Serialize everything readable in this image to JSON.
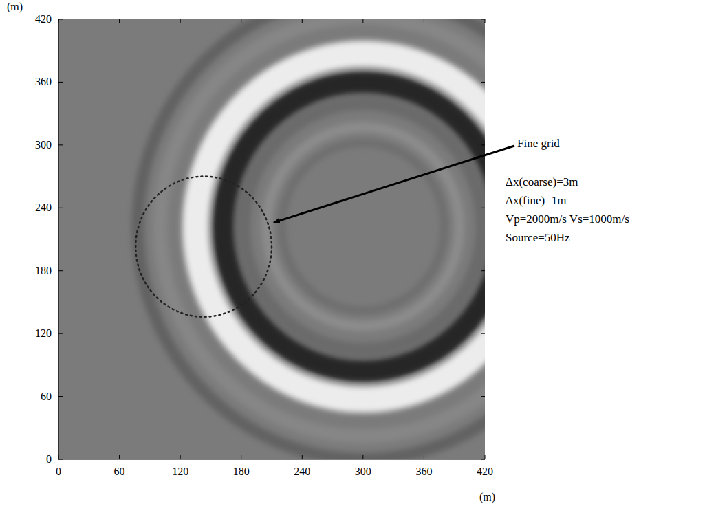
{
  "chart_data": {
    "type": "image",
    "x_label": "(m)",
    "y_label": "(m)",
    "xlim": [
      0,
      420
    ],
    "ylim": [
      0,
      420
    ],
    "xticks": [
      0,
      60,
      120,
      180,
      240,
      300,
      360,
      420
    ],
    "yticks": [
      0,
      60,
      120,
      180,
      240,
      300,
      360,
      420
    ],
    "color": "#7b7b7b",
    "wavefield": {
      "center": [
        300,
        222
      ],
      "rings": [
        {
          "radius": 222,
          "width": 12,
          "color": "#626262"
        },
        {
          "radius": 200,
          "width": 14,
          "color": "#868686"
        },
        {
          "radius": 165,
          "width": 26,
          "color": "#ececec"
        },
        {
          "radius": 138,
          "width": 22,
          "color": "#272727"
        },
        {
          "radius": 118,
          "width": 14,
          "color": "#6a6a6a"
        },
        {
          "radius": 95,
          "width": 10,
          "color": "#8c8c8c"
        },
        {
          "radius": 80,
          "width": 8,
          "color": "#6e6e6e"
        }
      ]
    },
    "fine_grid": {
      "label": "Fine grid",
      "center": [
        143,
        203
      ],
      "radius": 67,
      "arrow_to": [
        212,
        226
      ]
    },
    "annotations": [
      "Δx(coarse)=3m",
      "Δx(fine)=1m",
      "Vp=2000m/s Vs=1000m/s",
      "Source=50Hz"
    ]
  }
}
